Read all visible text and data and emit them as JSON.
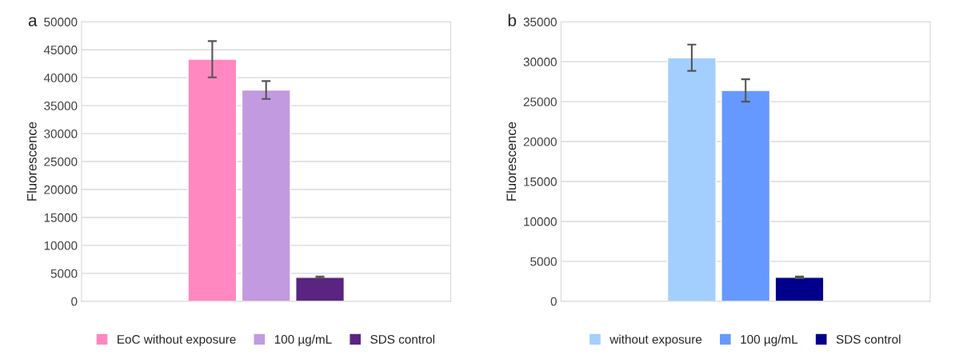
{
  "chart_data": [
    {
      "type": "bar",
      "ylabel": "Fluorescence",
      "annotations": [
        "a"
      ],
      "categories": [
        null
      ],
      "ylim": [
        0,
        50000
      ],
      "yticks": [
        0,
        5000,
        10000,
        15000,
        20000,
        25000,
        30000,
        35000,
        40000,
        45000,
        50000
      ],
      "grid": "y",
      "legend": "bottom",
      "series": [
        {
          "name": "EoC without exposure",
          "color": "#ff88c0",
          "values": [
            43300
          ],
          "errors": [
            3250
          ]
        },
        {
          "name": "100 µg/mL",
          "color": "#c29ae0",
          "values": [
            37800
          ],
          "errors": [
            1600
          ]
        },
        {
          "name": "SDS control",
          "color": "#5a2480",
          "values": [
            4300
          ],
          "errors": [
            150
          ]
        }
      ]
    },
    {
      "type": "bar",
      "ylabel": "Fluorescence",
      "annotations": [
        "b"
      ],
      "categories": [
        null
      ],
      "ylim": [
        0,
        35000
      ],
      "yticks": [
        0,
        5000,
        10000,
        15000,
        20000,
        25000,
        30000,
        35000
      ],
      "grid": "y",
      "legend": "bottom",
      "series": [
        {
          "name": "without exposure",
          "color": "#a3cffe",
          "values": [
            30500
          ],
          "errors": [
            1650
          ]
        },
        {
          "name": "100 µg/mL",
          "color": "#6699ff",
          "values": [
            26400
          ],
          "errors": [
            1400
          ]
        },
        {
          "name": "SDS control",
          "color": "#00008b",
          "values": [
            3000
          ],
          "errors": [
            100
          ]
        }
      ]
    }
  ]
}
